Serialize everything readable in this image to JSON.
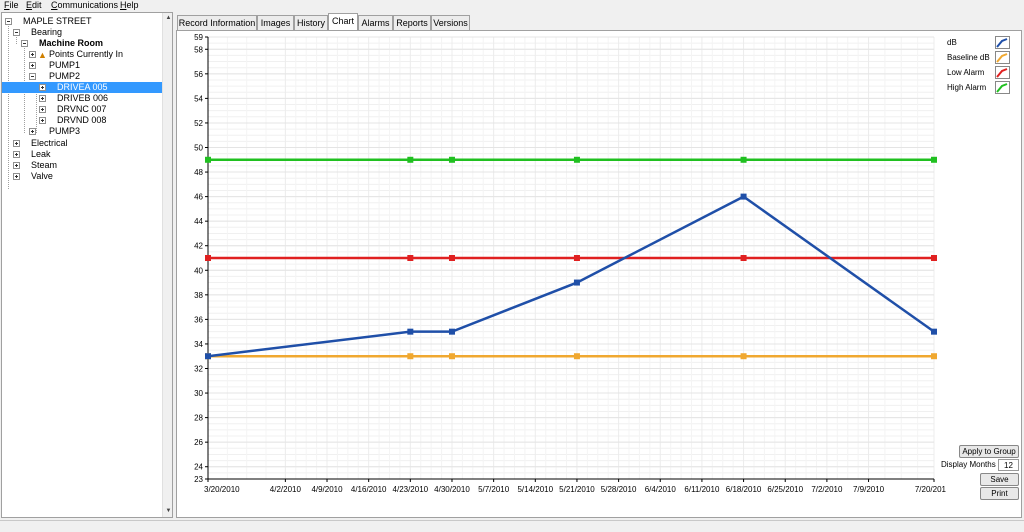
{
  "menu": [
    "File",
    "Edit",
    "Communications",
    "Help"
  ],
  "tree": {
    "root": "MAPLE STREET",
    "bearing": "Bearing",
    "machine_room": "Machine Room",
    "points": "Points Currently In",
    "pump1": "PUMP1",
    "pump2": "PUMP2",
    "drivea": "DRIVEA 005",
    "driveb": "DRIVEB 006",
    "drivnc": "DRVNC 007",
    "drvnd": "DRVND 008",
    "pump3": "PUMP3",
    "electrical": "Electrical",
    "leak": "Leak",
    "steam": "Steam",
    "valve": "Valve"
  },
  "tabs": [
    "Record Information",
    "Images",
    "History",
    "Chart",
    "Alarms",
    "Reports",
    "Versions"
  ],
  "active_tab": "Chart",
  "controls": {
    "apply_to_group": "Apply to Group",
    "display_months_label": "Display Months",
    "display_months_value": "12",
    "save": "Save",
    "print": "Print"
  },
  "chart_data": {
    "type": "line",
    "x": [
      "3/20/2010",
      "4/23/2010",
      "4/30/2010",
      "5/21/2010",
      "6/18/2010",
      "7/20/2010"
    ],
    "x_ticks": [
      "3/20/2010",
      "4/2/2010",
      "4/9/2010",
      "4/16/2010",
      "4/23/2010",
      "4/30/2010",
      "5/7/2010",
      "5/14/2010",
      "5/21/2010",
      "5/28/2010",
      "6/4/2010",
      "6/11/2010",
      "6/18/2010",
      "6/25/2010",
      "7/2/2010",
      "7/9/2010",
      "7/20/201"
    ],
    "y_ticks": [
      23,
      24,
      26,
      28,
      30,
      32,
      34,
      36,
      38,
      40,
      42,
      44,
      46,
      48,
      50,
      52,
      54,
      56,
      58,
      59
    ],
    "ylim": [
      23,
      59
    ],
    "grid": true,
    "legend_position": "top-right",
    "series": [
      {
        "name": "dB",
        "color": "#1f4fa8",
        "values": [
          33,
          35,
          35,
          39,
          46,
          35
        ]
      },
      {
        "name": "Baseline dB",
        "color": "#f0a830",
        "values": [
          33,
          33,
          33,
          33,
          33,
          33
        ]
      },
      {
        "name": "Low Alarm",
        "color": "#e02020",
        "values": [
          41,
          41,
          41,
          41,
          41,
          41
        ]
      },
      {
        "name": "High Alarm",
        "color": "#20c020",
        "values": [
          49,
          49,
          49,
          49,
          49,
          49
        ]
      }
    ]
  }
}
